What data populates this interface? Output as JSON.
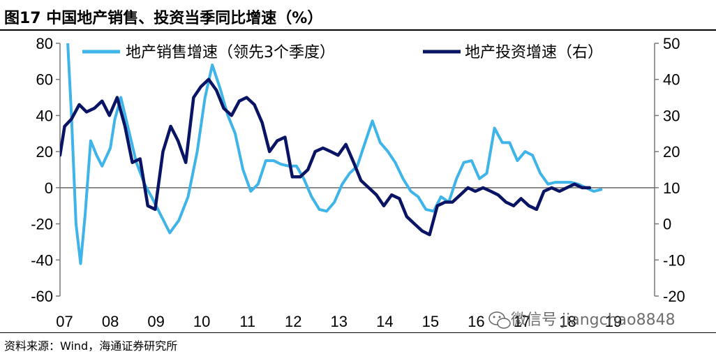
{
  "title": "图17 中国地产销售、投资当季同比增速（%）",
  "source": "资料来源：Wind，海通证券研究所",
  "watermark": "微信号 jiangchao8848",
  "chart_data": {
    "type": "line",
    "title": "",
    "xlabel": "",
    "ylabel_left": "",
    "ylabel_right": "",
    "x_tick_labels": [
      "07",
      "08",
      "09",
      "10",
      "11",
      "12",
      "13",
      "14",
      "15",
      "16",
      "17",
      "18",
      "19"
    ],
    "y_left": {
      "min": -60,
      "max": 80,
      "ticks": [
        -60,
        -40,
        -20,
        0,
        20,
        40,
        60,
        80
      ]
    },
    "y_right": {
      "min": -20,
      "max": 50,
      "ticks": [
        -20,
        -10,
        0,
        10,
        20,
        30,
        40,
        50
      ]
    },
    "grid": false,
    "legend_position": "top",
    "series": [
      {
        "name": "地产销售增速（领先3个季度）",
        "axis": "left",
        "color": "#3eb4e8",
        "points": [
          [
            2007.17,
            80
          ],
          [
            2007.25,
            40
          ],
          [
            2007.35,
            -20
          ],
          [
            2007.45,
            -42
          ],
          [
            2007.55,
            -15
          ],
          [
            2007.67,
            26
          ],
          [
            2007.8,
            18
          ],
          [
            2007.92,
            12
          ],
          [
            2008.1,
            22
          ],
          [
            2008.2,
            38
          ],
          [
            2008.33,
            50
          ],
          [
            2008.5,
            32
          ],
          [
            2008.67,
            14
          ],
          [
            2008.85,
            2
          ],
          [
            2009.0,
            -5
          ],
          [
            2009.2,
            -15
          ],
          [
            2009.4,
            -25
          ],
          [
            2009.6,
            -18
          ],
          [
            2009.8,
            -5
          ],
          [
            2010.0,
            20
          ],
          [
            2010.17,
            50
          ],
          [
            2010.33,
            68
          ],
          [
            2010.5,
            55
          ],
          [
            2010.67,
            40
          ],
          [
            2010.83,
            30
          ],
          [
            2011.0,
            10
          ],
          [
            2011.17,
            -2
          ],
          [
            2011.33,
            2
          ],
          [
            2011.5,
            15
          ],
          [
            2011.67,
            15
          ],
          [
            2011.83,
            13
          ],
          [
            2012.0,
            12
          ],
          [
            2012.17,
            12
          ],
          [
            2012.33,
            5
          ],
          [
            2012.5,
            -5
          ],
          [
            2012.67,
            -12
          ],
          [
            2012.83,
            -13
          ],
          [
            2013.0,
            -8
          ],
          [
            2013.17,
            2
          ],
          [
            2013.33,
            8
          ],
          [
            2013.5,
            12
          ],
          [
            2013.67,
            25
          ],
          [
            2013.83,
            37
          ],
          [
            2014.0,
            25
          ],
          [
            2014.17,
            20
          ],
          [
            2014.33,
            14
          ],
          [
            2014.5,
            5
          ],
          [
            2014.67,
            -2
          ],
          [
            2014.83,
            -5
          ],
          [
            2015.0,
            -12
          ],
          [
            2015.17,
            -13
          ],
          [
            2015.33,
            -5
          ],
          [
            2015.5,
            -8
          ],
          [
            2015.67,
            5
          ],
          [
            2015.83,
            14
          ],
          [
            2016.0,
            15
          ],
          [
            2016.17,
            5
          ],
          [
            2016.33,
            8
          ],
          [
            2016.5,
            33
          ],
          [
            2016.67,
            25
          ],
          [
            2016.83,
            25
          ],
          [
            2017.0,
            15
          ],
          [
            2017.17,
            20
          ],
          [
            2017.33,
            18
          ],
          [
            2017.5,
            8
          ],
          [
            2017.67,
            2
          ],
          [
            2017.83,
            3
          ],
          [
            2018.0,
            3
          ],
          [
            2018.17,
            3
          ],
          [
            2018.33,
            2
          ],
          [
            2018.5,
            0
          ],
          [
            2018.67,
            -2
          ],
          [
            2018.83,
            -1
          ]
        ]
      },
      {
        "name": "地产投资增速（右）",
        "axis": "right",
        "color": "#0a1464",
        "points": [
          [
            2007.0,
            19
          ],
          [
            2007.1,
            27
          ],
          [
            2007.25,
            29
          ],
          [
            2007.42,
            33
          ],
          [
            2007.58,
            31
          ],
          [
            2007.75,
            32
          ],
          [
            2007.92,
            34
          ],
          [
            2008.08,
            30
          ],
          [
            2008.25,
            35
          ],
          [
            2008.42,
            27
          ],
          [
            2008.58,
            17
          ],
          [
            2008.75,
            18
          ],
          [
            2008.92,
            5
          ],
          [
            2009.08,
            4
          ],
          [
            2009.25,
            20
          ],
          [
            2009.42,
            27
          ],
          [
            2009.58,
            23
          ],
          [
            2009.75,
            17
          ],
          [
            2009.92,
            35
          ],
          [
            2010.08,
            38
          ],
          [
            2010.25,
            40
          ],
          [
            2010.42,
            37
          ],
          [
            2010.58,
            32
          ],
          [
            2010.75,
            30
          ],
          [
            2010.92,
            34
          ],
          [
            2011.08,
            35
          ],
          [
            2011.25,
            33
          ],
          [
            2011.42,
            28
          ],
          [
            2011.58,
            20
          ],
          [
            2011.75,
            23
          ],
          [
            2011.92,
            24
          ],
          [
            2012.08,
            13
          ],
          [
            2012.25,
            13
          ],
          [
            2012.42,
            15
          ],
          [
            2012.58,
            20
          ],
          [
            2012.75,
            21
          ],
          [
            2012.92,
            20
          ],
          [
            2013.08,
            19
          ],
          [
            2013.25,
            22
          ],
          [
            2013.42,
            17
          ],
          [
            2013.58,
            12
          ],
          [
            2013.75,
            10
          ],
          [
            2013.92,
            8
          ],
          [
            2014.08,
            5
          ],
          [
            2014.25,
            8
          ],
          [
            2014.42,
            7
          ],
          [
            2014.58,
            2
          ],
          [
            2014.75,
            0
          ],
          [
            2014.92,
            -2
          ],
          [
            2015.08,
            -3
          ],
          [
            2015.25,
            5
          ],
          [
            2015.42,
            6
          ],
          [
            2015.58,
            6
          ],
          [
            2015.75,
            8
          ],
          [
            2015.92,
            10
          ],
          [
            2016.08,
            9
          ],
          [
            2016.25,
            10
          ],
          [
            2016.42,
            9
          ],
          [
            2016.58,
            8
          ],
          [
            2016.75,
            6
          ],
          [
            2016.92,
            5
          ],
          [
            2017.08,
            7
          ],
          [
            2017.25,
            5
          ],
          [
            2017.42,
            4
          ],
          [
            2017.58,
            9
          ],
          [
            2017.75,
            10
          ],
          [
            2017.92,
            9
          ],
          [
            2018.08,
            10
          ],
          [
            2018.25,
            11
          ],
          [
            2018.42,
            10
          ],
          [
            2018.58,
            10
          ]
        ]
      }
    ]
  }
}
